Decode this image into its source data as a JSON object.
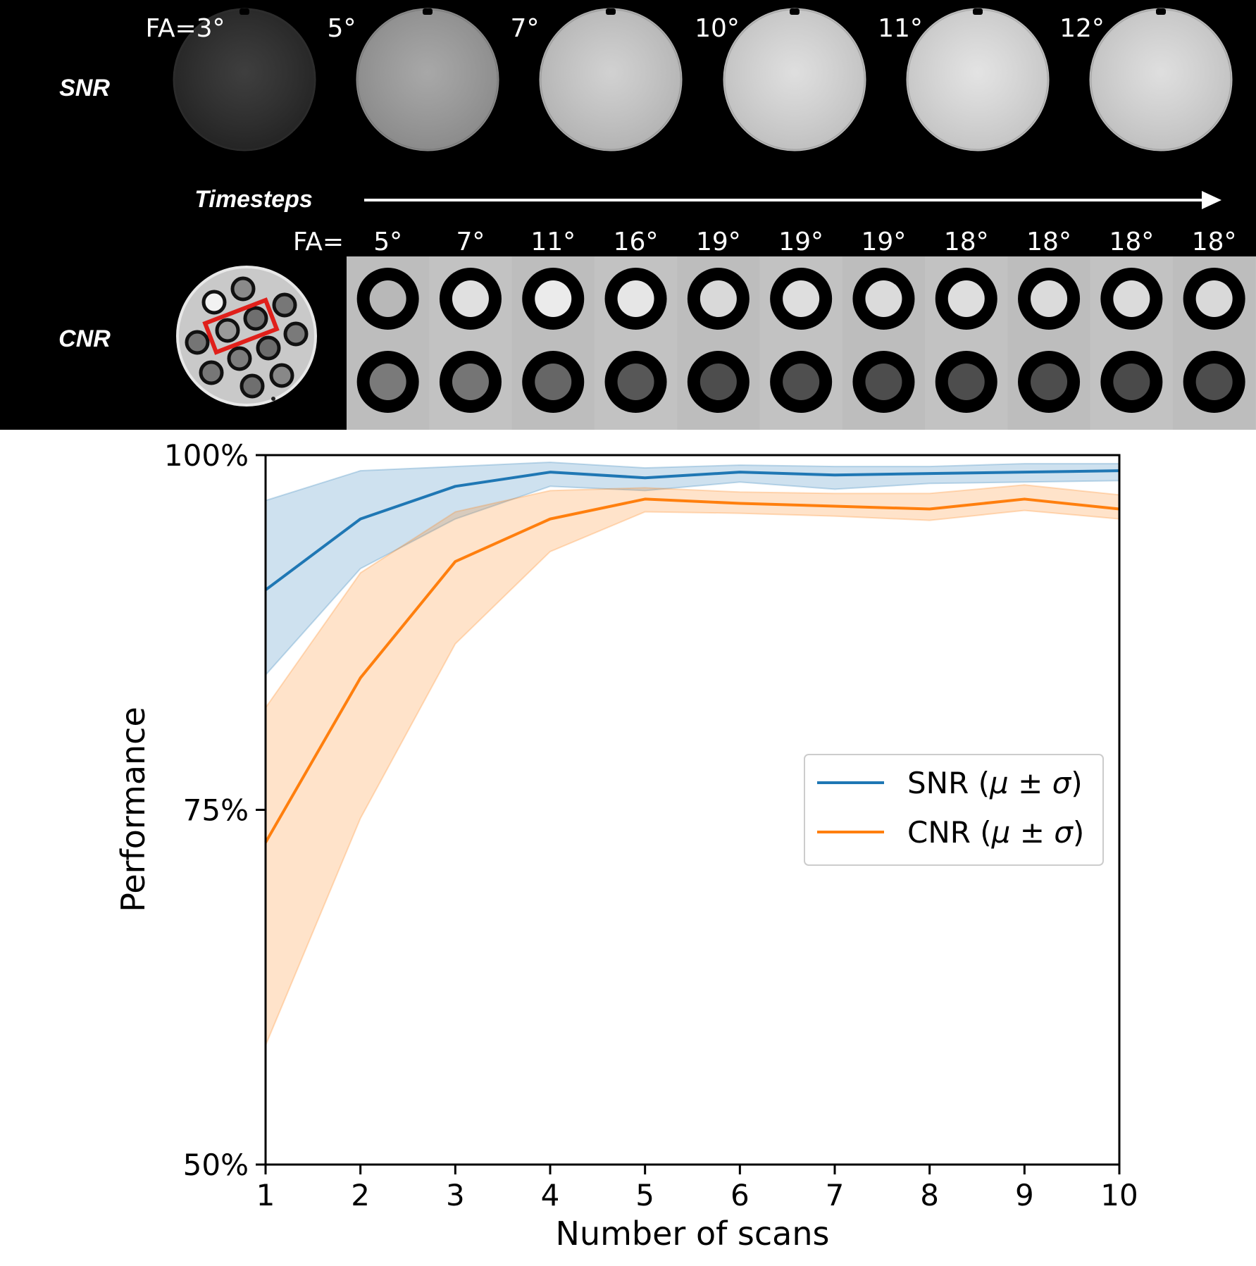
{
  "top_panel": {
    "snr_row": {
      "label": "SNR",
      "fa_prefix": "FA=",
      "flip_angles": [
        "3°",
        "5°",
        "7°",
        "10°",
        "11°",
        "12°"
      ],
      "fa_full": [
        "FA=3°",
        "5°",
        "7°",
        "10°",
        "11°",
        "12°"
      ],
      "phantom_brightness": [
        0.16,
        0.62,
        0.8,
        0.86,
        0.88,
        0.86
      ]
    },
    "timesteps_label": "Timesteps",
    "cnr_row": {
      "label": "CNR",
      "fa_prefix": "FA=",
      "flip_angles": [
        "5°",
        "7°",
        "11°",
        "16°",
        "19°",
        "19°",
        "19°",
        "18°",
        "18°",
        "18°",
        "18°"
      ],
      "top_vial_brightness": [
        0.72,
        0.88,
        0.92,
        0.9,
        0.85,
        0.87,
        0.86,
        0.87,
        0.86,
        0.86,
        0.85
      ],
      "bottom_vial_brightness": [
        0.48,
        0.46,
        0.4,
        0.34,
        0.3,
        0.31,
        0.3,
        0.3,
        0.3,
        0.29,
        0.3
      ]
    },
    "colors": {
      "background": "#000000",
      "highlight_box": "#e0201b",
      "text": "#ffffff"
    }
  },
  "chart_data": {
    "type": "line",
    "title": "",
    "xlabel": "Number of scans",
    "ylabel": "Performance",
    "x": [
      1,
      2,
      3,
      4,
      5,
      6,
      7,
      8,
      9,
      10
    ],
    "xlim": [
      1,
      10
    ],
    "ylim": [
      50,
      100
    ],
    "x_ticks": [
      "1",
      "2",
      "3",
      "4",
      "5",
      "6",
      "7",
      "8",
      "9",
      "10"
    ],
    "y_ticks": [
      {
        "value": 50,
        "label": "50%"
      },
      {
        "value": 75,
        "label": "75%"
      },
      {
        "value": 100,
        "label": "100%"
      }
    ],
    "legend_position": "center-right",
    "series": [
      {
        "name": "SNR (μ ± σ)",
        "legend_main": "SNR (",
        "legend_math": "μ ± σ",
        "legend_close": ")",
        "color": "#1f77b4",
        "values": [
          90.5,
          95.5,
          97.8,
          98.8,
          98.4,
          98.8,
          98.6,
          98.7,
          98.8,
          98.9
        ],
        "lower": [
          84.5,
          92.0,
          95.5,
          97.8,
          97.5,
          98.1,
          97.6,
          98.0,
          98.1,
          98.2
        ],
        "upper": [
          96.8,
          98.9,
          99.2,
          99.5,
          99.1,
          99.3,
          99.2,
          99.2,
          99.4,
          99.4
        ]
      },
      {
        "name": "CNR (μ ± σ)",
        "legend_main": "CNR (",
        "legend_math": "μ ± σ",
        "legend_close": ")",
        "color": "#ff7f0e",
        "values": [
          72.7,
          84.3,
          92.5,
          95.5,
          96.9,
          96.6,
          96.4,
          96.2,
          96.9,
          96.2
        ],
        "lower": [
          58.4,
          74.4,
          86.7,
          93.2,
          96.0,
          95.9,
          95.7,
          95.4,
          96.1,
          95.5
        ],
        "upper": [
          82.2,
          91.7,
          96.0,
          97.5,
          97.7,
          97.4,
          97.3,
          97.3,
          97.9,
          97.2
        ]
      }
    ]
  }
}
